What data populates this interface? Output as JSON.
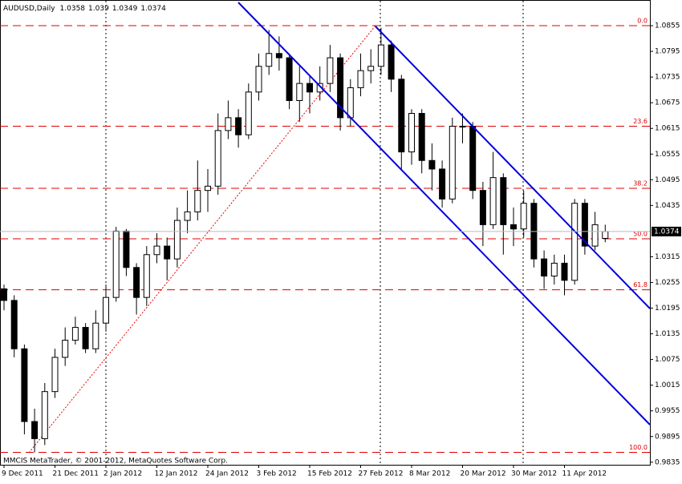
{
  "chart_data": {
    "type": "candlestick",
    "title": "AUDUSD,Daily",
    "footer": "MMCIS MetaTrader, © 2001-2012, MetaQuotes Software Corp.",
    "categories": [
      "9 Dec 2011",
      null,
      null,
      null,
      null,
      "21 Dec 2011",
      null,
      null,
      null,
      null,
      "2 Jan 2012",
      null,
      null,
      null,
      null,
      "12 Jan 2012",
      null,
      null,
      null,
      null,
      "24 Jan 2012",
      null,
      null,
      null,
      null,
      "3 Feb 2012",
      null,
      null,
      null,
      null,
      "15 Feb 2012",
      null,
      null,
      null,
      null,
      "27 Feb 2012",
      null,
      null,
      null,
      null,
      "8 Mar 2012",
      null,
      null,
      null,
      null,
      "20 Mar 2012",
      null,
      null,
      null,
      null,
      "30 Mar 2012",
      null,
      null,
      null,
      null,
      "11 Apr 2012",
      null,
      null,
      null,
      null
    ],
    "open": [
      1.024,
      1.0213,
      1.01,
      0.993,
      0.989,
      1.0,
      1.008,
      1.012,
      1.015,
      1.01,
      1.016,
      1.022,
      1.0375,
      1.029,
      1.022,
      1.032,
      1.034,
      1.031,
      1.04,
      1.042,
      1.047,
      1.048,
      1.061,
      1.064,
      1.06,
      1.07,
      1.076,
      1.079,
      1.078,
      1.068,
      1.072,
      1.07,
      1.072,
      1.078,
      1.064,
      1.071,
      1.075,
      1.076,
      1.081,
      1.073,
      1.056,
      1.065,
      1.054,
      1.052,
      1.045,
      1.062,
      1.062,
      1.047,
      1.039,
      1.05,
      1.039,
      1.038,
      1.044,
      1.031,
      1.027,
      1.03,
      1.026,
      1.044,
      1.034,
      1.0358
    ],
    "high": [
      1.025,
      1.0225,
      1.011,
      0.996,
      1.002,
      1.01,
      1.015,
      1.0175,
      1.016,
      1.019,
      1.025,
      1.0385,
      1.038,
      1.03,
      1.034,
      1.037,
      1.036,
      1.043,
      1.047,
      1.054,
      1.052,
      1.065,
      1.068,
      1.066,
      1.072,
      1.079,
      1.0845,
      1.083,
      1.079,
      1.076,
      1.074,
      1.076,
      1.081,
      1.079,
      1.073,
      1.079,
      1.08,
      1.085,
      1.082,
      1.074,
      1.066,
      1.066,
      1.058,
      1.054,
      1.064,
      1.065,
      1.063,
      1.049,
      1.056,
      1.051,
      1.043,
      1.047,
      1.045,
      1.033,
      1.032,
      1.032,
      1.045,
      1.045,
      1.042,
      1.039
    ],
    "low": [
      1.019,
      1.008,
      0.99,
      0.9858,
      0.9875,
      0.9985,
      1.006,
      1.011,
      1.009,
      1.009,
      1.014,
      1.021,
      1.027,
      1.018,
      1.02,
      1.03,
      1.026,
      1.029,
      1.037,
      1.04,
      1.042,
      1.046,
      1.059,
      1.057,
      1.059,
      1.068,
      1.074,
      1.075,
      1.066,
      1.063,
      1.065,
      1.068,
      1.07,
      1.061,
      1.062,
      1.069,
      1.072,
      1.074,
      1.07,
      1.052,
      1.053,
      1.051,
      1.047,
      1.043,
      1.044,
      1.058,
      1.045,
      1.034,
      1.038,
      1.032,
      1.034,
      1.036,
      1.029,
      1.024,
      1.025,
      1.0225,
      1.025,
      1.032,
      1.033,
      1.0349
    ],
    "close": [
      1.0213,
      1.01,
      0.993,
      0.989,
      1.0,
      1.008,
      1.012,
      1.015,
      1.01,
      1.016,
      1.022,
      1.0375,
      1.029,
      1.022,
      1.032,
      1.034,
      1.031,
      1.04,
      1.042,
      1.047,
      1.048,
      1.061,
      1.064,
      1.06,
      1.07,
      1.076,
      1.079,
      1.078,
      1.068,
      1.072,
      1.07,
      1.072,
      1.078,
      1.064,
      1.071,
      1.075,
      1.076,
      1.081,
      1.073,
      1.056,
      1.065,
      1.054,
      1.052,
      1.045,
      1.062,
      1.062,
      1.047,
      1.039,
      1.05,
      1.039,
      1.038,
      1.044,
      1.031,
      1.027,
      1.03,
      1.026,
      1.044,
      1.034,
      1.039,
      1.0374
    ],
    "ylim": [
      0.9829,
      1.0915
    ],
    "yticks": [
      1.0855,
      1.0795,
      1.0735,
      1.0675,
      1.0615,
      1.0555,
      1.0495,
      1.0435,
      1.0315,
      1.0255,
      1.0195,
      1.0135,
      1.0075,
      1.0015,
      0.9955,
      0.9895,
      0.9835
    ],
    "fib_levels": [
      {
        "label": "0.0",
        "price": 1.0855
      },
      {
        "label": "23.6",
        "price": 1.062
      },
      {
        "label": "38.2",
        "price": 1.0475
      },
      {
        "label": "50.0",
        "price": 1.0357
      },
      {
        "label": "61.8",
        "price": 1.0238
      },
      {
        "label": "100.0",
        "price": 0.9858
      }
    ],
    "grid": false
  }
}
